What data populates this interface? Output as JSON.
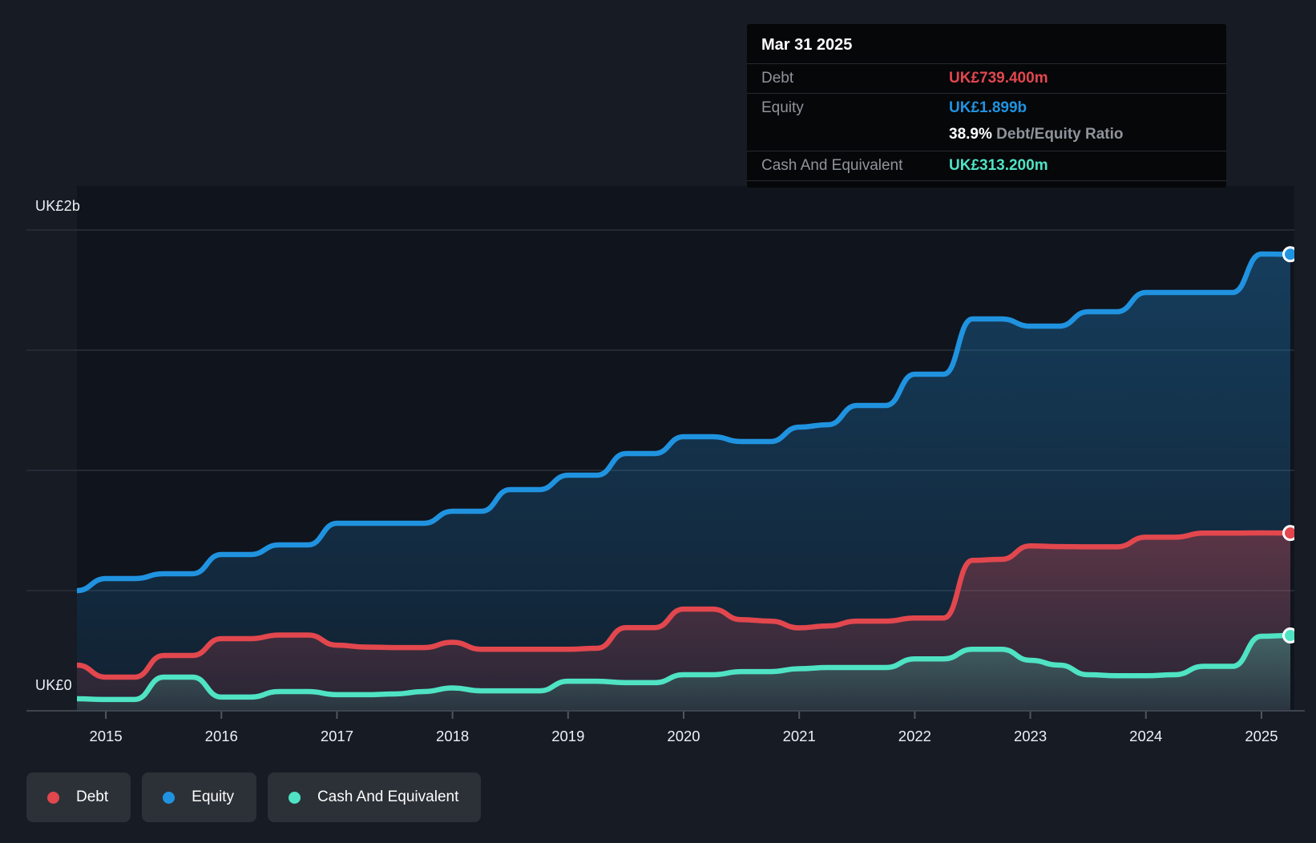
{
  "tooltip": {
    "date": "Mar 31 2025",
    "debt_label": "Debt",
    "debt_value": "UK£739.400m",
    "equity_label": "Equity",
    "equity_value": "UK£1.899b",
    "ratio_value": "38.9%",
    "ratio_label": "Debt/Equity Ratio",
    "cash_label": "Cash And Equivalent",
    "cash_value": "UK£313.200m"
  },
  "axis": {
    "y_top_label": "UK£2b",
    "y_zero_label": "UK£0",
    "x_ticks": [
      "2015",
      "2016",
      "2017",
      "2018",
      "2019",
      "2020",
      "2021",
      "2022",
      "2023",
      "2024",
      "2025"
    ]
  },
  "legend": {
    "items": [
      {
        "label": "Debt",
        "color": "#e2474e"
      },
      {
        "label": "Equity",
        "color": "#2093e0"
      },
      {
        "label": "Cash And Equivalent",
        "color": "#4fe3c4"
      }
    ]
  },
  "colors": {
    "background": "#161b24",
    "plot_background": "#10141d",
    "grid_line": "#2a303a",
    "axis_line": "#3f454e",
    "tick": "#50565e",
    "debt": "#e2474e",
    "equity": "#2093e0",
    "cash": "#4fe3c4",
    "tooltip_bg": "#060709",
    "label_gray": "#8e949b"
  },
  "chart_data": {
    "type": "area",
    "title": "Debt to Equity history (UK£ billions)",
    "x_unit": "year (quarterly points)",
    "y_unit": "UK£ billions",
    "x_range": [
      2014.75,
      2025.25
    ],
    "ylim": [
      0,
      2
    ],
    "grid_values": [
      0.5,
      1.0,
      1.5,
      2.0
    ],
    "legend_position": "bottom-left",
    "x": [
      2014.75,
      2015,
      2015.25,
      2015.5,
      2015.75,
      2016,
      2016.25,
      2016.5,
      2016.75,
      2017,
      2017.25,
      2017.5,
      2017.75,
      2018,
      2018.25,
      2018.5,
      2018.75,
      2019,
      2019.25,
      2019.5,
      2019.75,
      2020,
      2020.25,
      2020.5,
      2020.75,
      2021,
      2021.25,
      2021.5,
      2021.75,
      2022,
      2022.25,
      2022.5,
      2022.75,
      2023,
      2023.25,
      2023.5,
      2023.75,
      2024,
      2024.25,
      2024.5,
      2024.75,
      2025,
      2025.25
    ],
    "series": [
      {
        "name": "Equity",
        "color": "#2093e0",
        "last_value_label": "UK£1.899b",
        "values": [
          0.5,
          0.55,
          0.55,
          0.57,
          0.57,
          0.65,
          0.65,
          0.69,
          0.69,
          0.78,
          0.78,
          0.78,
          0.78,
          0.83,
          0.83,
          0.92,
          0.92,
          0.98,
          0.98,
          1.07,
          1.07,
          1.14,
          1.14,
          1.12,
          1.12,
          1.18,
          1.19,
          1.27,
          1.27,
          1.4,
          1.4,
          1.63,
          1.63,
          1.6,
          1.6,
          1.66,
          1.66,
          1.74,
          1.74,
          1.74,
          1.74,
          1.9,
          1.899
        ]
      },
      {
        "name": "Debt",
        "color": "#e2474e",
        "last_value_label": "UK£739.400m",
        "values": [
          0.19,
          0.14,
          0.14,
          0.23,
          0.23,
          0.3,
          0.3,
          0.315,
          0.315,
          0.273,
          0.265,
          0.263,
          0.263,
          0.285,
          0.256,
          0.256,
          0.256,
          0.256,
          0.26,
          0.346,
          0.346,
          0.423,
          0.423,
          0.379,
          0.373,
          0.345,
          0.353,
          0.373,
          0.373,
          0.386,
          0.386,
          0.626,
          0.63,
          0.686,
          0.683,
          0.682,
          0.682,
          0.722,
          0.722,
          0.739,
          0.739,
          0.74,
          0.7394
        ]
      },
      {
        "name": "Cash And Equivalent",
        "color": "#4fe3c4",
        "last_value_label": "UK£313.200m",
        "values": [
          0.05,
          0.047,
          0.047,
          0.14,
          0.14,
          0.057,
          0.057,
          0.08,
          0.08,
          0.067,
          0.067,
          0.07,
          0.08,
          0.095,
          0.083,
          0.083,
          0.083,
          0.123,
          0.123,
          0.117,
          0.117,
          0.15,
          0.15,
          0.163,
          0.163,
          0.175,
          0.18,
          0.18,
          0.18,
          0.216,
          0.216,
          0.256,
          0.256,
          0.21,
          0.19,
          0.15,
          0.146,
          0.146,
          0.15,
          0.185,
          0.185,
          0.31,
          0.3132
        ]
      }
    ]
  }
}
